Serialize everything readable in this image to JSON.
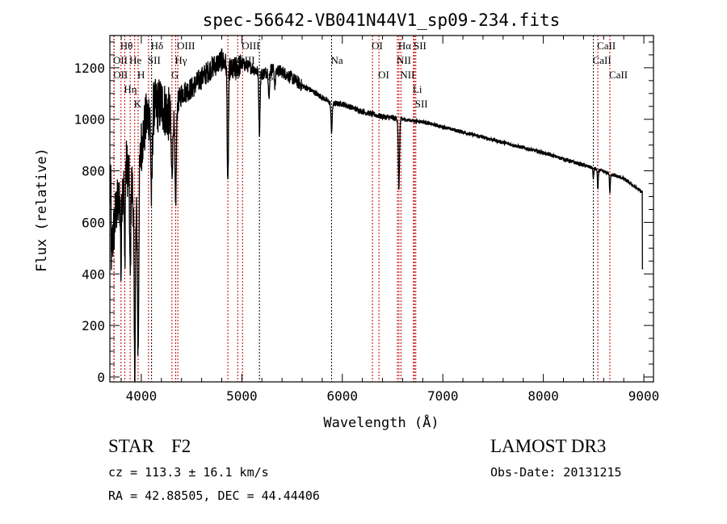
{
  "chart_data": {
    "type": "line",
    "title": "spec-56642-VB041N44V1_sp09-234.fits",
    "xlabel": "Wavelength (Å)",
    "ylabel": "Flux (relative)",
    "xlim": [
      3687,
      9096
    ],
    "ylim": [
      -19,
      1325
    ],
    "xticks": [
      4000,
      5000,
      6000,
      7000,
      8000,
      9000
    ],
    "yticks": [
      0,
      200,
      400,
      600,
      800,
      1000,
      1200
    ],
    "grid": false,
    "continuum": [
      [
        3700,
        480
      ],
      [
        3750,
        650
      ],
      [
        3800,
        700
      ],
      [
        3850,
        820
      ],
      [
        3900,
        760
      ],
      [
        3950,
        620
      ],
      [
        4000,
        900
      ],
      [
        4050,
        1000
      ],
      [
        4100,
        1040
      ],
      [
        4200,
        1060
      ],
      [
        4300,
        1000
      ],
      [
        4400,
        1100
      ],
      [
        4500,
        1120
      ],
      [
        4600,
        1160
      ],
      [
        4700,
        1200
      ],
      [
        4800,
        1230
      ],
      [
        4900,
        1190
      ],
      [
        5000,
        1215
      ],
      [
        5100,
        1200
      ],
      [
        5200,
        1175
      ],
      [
        5300,
        1195
      ],
      [
        5400,
        1185
      ],
      [
        5500,
        1160
      ],
      [
        5600,
        1130
      ],
      [
        5700,
        1110
      ],
      [
        5800,
        1085
      ],
      [
        5900,
        1060
      ],
      [
        6000,
        1060
      ],
      [
        6200,
        1030
      ],
      [
        6400,
        1010
      ],
      [
        6600,
        1000
      ],
      [
        6800,
        990
      ],
      [
        7000,
        970
      ],
      [
        7500,
        920
      ],
      [
        8000,
        870
      ],
      [
        8500,
        810
      ],
      [
        8800,
        770
      ],
      [
        8990,
        715
      ]
    ],
    "absorption": [
      [
        3934,
        650,
        6
      ],
      [
        3968,
        620,
        6
      ],
      [
        3889,
        400,
        5
      ],
      [
        3835,
        350,
        4
      ],
      [
        3798,
        300,
        4
      ],
      [
        4102,
        350,
        7
      ],
      [
        4305,
        220,
        8
      ],
      [
        4341,
        380,
        7
      ],
      [
        4861,
        480,
        6
      ],
      [
        5175,
        230,
        6
      ],
      [
        5270,
        120,
        5
      ],
      [
        5330,
        60,
        6
      ],
      [
        5893,
        110,
        6
      ],
      [
        6563,
        270,
        6
      ],
      [
        8498,
        40,
        4
      ],
      [
        8542,
        80,
        4
      ],
      [
        8662,
        80,
        4
      ]
    ],
    "lines": [
      {
        "w": 3727,
        "label": "OII",
        "row": 2,
        "color": "#c00000"
      },
      {
        "w": 3729,
        "label": "OII",
        "row": 3,
        "color": "#c00000"
      },
      {
        "w": 3798,
        "label": "Hθ",
        "row": 1,
        "color": "#c00000"
      },
      {
        "w": 3835,
        "label": "Hη",
        "row": 3,
        "color": "#c00000"
      },
      {
        "w": 3889,
        "label": "He",
        "row": 2,
        "color": "#c00000"
      },
      {
        "w": 3934,
        "label": "K",
        "row": 1,
        "color": "#c00000"
      },
      {
        "w": 3968,
        "label": "H",
        "row": 3,
        "color": "#c00000"
      },
      {
        "w": 4072,
        "label": "SII",
        "row": 2,
        "color": "#c00000"
      },
      {
        "w": 4102,
        "label": "Hδ",
        "row": 1,
        "color": "#000000"
      },
      {
        "w": 4305,
        "label": "G",
        "row": 3,
        "color": "#c00000"
      },
      {
        "w": 4341,
        "label": "Hγ",
        "row": 2,
        "color": "#c00000"
      },
      {
        "w": 4363,
        "label": "OIII",
        "row": 1,
        "color": "#c00000"
      },
      {
        "w": 4861,
        "label": "Hβ",
        "row": 3,
        "color": "#c00000"
      },
      {
        "w": 4959,
        "label": "OIII",
        "row": 2,
        "color": "#c00000"
      },
      {
        "w": 5007,
        "label": "OIII",
        "row": 1,
        "color": "#c00000"
      },
      {
        "w": 5175,
        "label": "Mg",
        "row": 3,
        "color": "#000000"
      },
      {
        "w": 5893,
        "label": "Na",
        "row": 2,
        "color": "#000000"
      },
      {
        "w": 6300,
        "label": "OI",
        "row": 1,
        "color": "#c00000"
      },
      {
        "w": 6364,
        "label": "OI",
        "row": 3,
        "color": "#c00000"
      },
      {
        "w": 6548,
        "label": "NII",
        "row": 2,
        "color": "#c00000"
      },
      {
        "w": 6563,
        "label": "Hα",
        "row": 1,
        "color": "#c00000"
      },
      {
        "w": 6583,
        "label": "NII",
        "row": 3,
        "color": "#c00000"
      },
      {
        "w": 6708,
        "label": "Li",
        "row": 2,
        "color": "#c00000"
      },
      {
        "w": 6717,
        "label": "SII",
        "row": 1,
        "color": "#c00000"
      },
      {
        "w": 6731,
        "label": "SII",
        "row": 3,
        "color": "#c00000"
      },
      {
        "w": 8498,
        "label": "CaII",
        "row": 2,
        "color": "#000000"
      },
      {
        "w": 8542,
        "label": "CaII",
        "row": 1,
        "color": "#c00000"
      },
      {
        "w": 8662,
        "label": "CaII",
        "row": 3,
        "color": "#c00000"
      }
    ]
  },
  "info": {
    "object_type": "STAR",
    "subclass": "F2",
    "survey": "LAMOST DR3",
    "cz": "cz = 113.3 ± 16.1 km/s",
    "obs_date": "Obs-Date: 20131215",
    "coords": "RA =  42.88505, DEC =  44.44406"
  }
}
